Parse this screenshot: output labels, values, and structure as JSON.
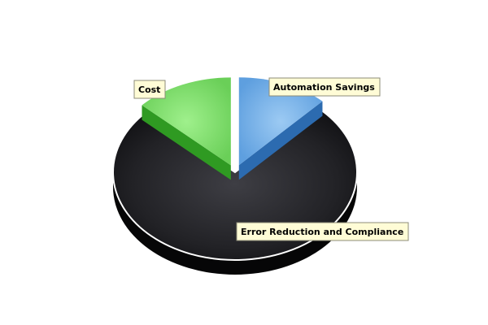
{
  "chart_data": {
    "type": "pie",
    "style": "3d-exploded",
    "start_angle_deg": 0,
    "direction": "clockwise",
    "slices": [
      {
        "label": "Automation Savings",
        "value": 12,
        "color": "#6aaae8",
        "exploded": true
      },
      {
        "label": "Error Reduction and Compliance",
        "value": 75,
        "color": "#2a2a2e",
        "exploded": false
      },
      {
        "label": "Cost",
        "value": 13,
        "color": "#7fdc6c",
        "exploded": true
      }
    ],
    "legend": "none",
    "title": ""
  }
}
